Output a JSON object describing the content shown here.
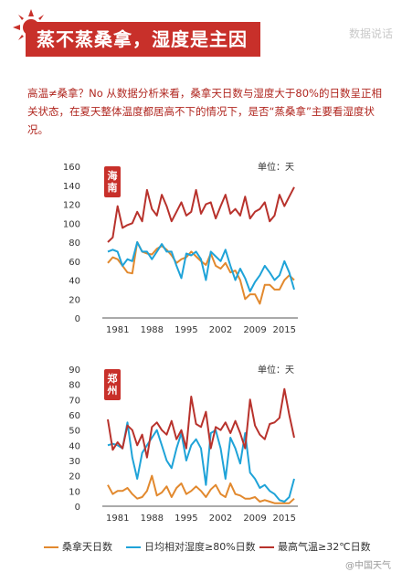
{
  "header": {
    "title": "蒸不蒸桑拿，湿度是主因",
    "brand": "数据说话"
  },
  "intro": "高温≠桑拿？No 从数据分析来看，桑拿天日数与湿度大于80%的日数呈正相关状态，在夏天整体温度都居高不下的情况下，是否“蒸桑拿”主要看湿度状况。",
  "footer": "@中国天气",
  "colors": {
    "sauna": "#e2892e",
    "humidity": "#1fa3d8",
    "hot": "#b8322c",
    "title_bg": "#c8302a"
  },
  "legend": [
    {
      "label": "桑拿天日数",
      "color": "#e2892e"
    },
    {
      "label": "日均相对湿度≥80%日数",
      "color": "#1fa3d8"
    },
    {
      "label": "最高气温≥32℃日数",
      "color": "#b8322c"
    }
  ],
  "chart_data": [
    {
      "type": "line",
      "title": "",
      "region": "海南",
      "unit": "单位：天",
      "x": [
        1979,
        1980,
        1981,
        1982,
        1983,
        1984,
        1985,
        1986,
        1987,
        1988,
        1989,
        1990,
        1991,
        1992,
        1993,
        1994,
        1995,
        1996,
        1997,
        1998,
        1999,
        2000,
        2001,
        2002,
        2003,
        2004,
        2005,
        2006,
        2007,
        2008,
        2009,
        2010,
        2011,
        2012,
        2013,
        2014,
        2015,
        2016,
        2017
      ],
      "x_ticks": [
        "1981",
        "1988",
        "1995",
        "2002",
        "2009",
        "2015"
      ],
      "x_tick_values": [
        1981,
        1988,
        1995,
        2002,
        2009,
        2015
      ],
      "ylim": [
        0,
        160
      ],
      "y_ticks": [
        0,
        20,
        40,
        60,
        80,
        100,
        120,
        140,
        160
      ],
      "series": [
        {
          "name": "桑拿天日数",
          "color": "#e2892e",
          "values": [
            58,
            64,
            62,
            55,
            48,
            47,
            80,
            70,
            68,
            67,
            73,
            76,
            72,
            66,
            58,
            62,
            64,
            70,
            65,
            60,
            56,
            68,
            55,
            52,
            58,
            48,
            50,
            40,
            20,
            25,
            25,
            15,
            35,
            35,
            30,
            30,
            40,
            45,
            40
          ]
        },
        {
          "name": "日均相对湿度≥80%日数",
          "color": "#1fa3d8",
          "values": [
            70,
            72,
            70,
            55,
            62,
            60,
            80,
            70,
            70,
            62,
            70,
            78,
            70,
            70,
            55,
            42,
            68,
            66,
            70,
            62,
            40,
            70,
            65,
            60,
            72,
            55,
            40,
            52,
            42,
            28,
            38,
            45,
            55,
            48,
            40,
            45,
            60,
            48,
            30
          ]
        },
        {
          "name": "最高气温≥32℃日数",
          "color": "#b8322c",
          "values": [
            80,
            85,
            118,
            95,
            98,
            100,
            112,
            102,
            135,
            115,
            108,
            130,
            118,
            102,
            112,
            122,
            108,
            112,
            135,
            110,
            120,
            122,
            105,
            118,
            130,
            110,
            115,
            108,
            128,
            105,
            112,
            115,
            122,
            102,
            108,
            130,
            118,
            128,
            138
          ]
        }
      ]
    },
    {
      "type": "line",
      "title": "",
      "region": "郑州",
      "unit": "单位：天",
      "x": [
        1979,
        1980,
        1981,
        1982,
        1983,
        1984,
        1985,
        1986,
        1987,
        1988,
        1989,
        1990,
        1991,
        1992,
        1993,
        1994,
        1995,
        1996,
        1997,
        1998,
        1999,
        2000,
        2001,
        2002,
        2003,
        2004,
        2005,
        2006,
        2007,
        2008,
        2009,
        2010,
        2011,
        2012,
        2013,
        2014,
        2015,
        2016,
        2017
      ],
      "x_ticks": [
        "1981",
        "1988",
        "1995",
        "2002",
        "2009",
        "2015"
      ],
      "x_tick_values": [
        1981,
        1988,
        1995,
        2002,
        2009,
        2015
      ],
      "ylim": [
        0,
        90
      ],
      "y_ticks": [
        0,
        10,
        20,
        30,
        40,
        50,
        60,
        70,
        80,
        90
      ],
      "series": [
        {
          "name": "桑拿天日数",
          "color": "#e2892e",
          "values": [
            14,
            8,
            10,
            10,
            12,
            8,
            5,
            6,
            10,
            20,
            7,
            9,
            13,
            6,
            12,
            15,
            8,
            10,
            13,
            10,
            6,
            11,
            14,
            8,
            6,
            15,
            8,
            7,
            5,
            5,
            6,
            3,
            4,
            3,
            2,
            2,
            2,
            2,
            5
          ]
        },
        {
          "name": "日均相对湿度≥80%日数",
          "color": "#1fa3d8",
          "values": [
            40,
            41,
            40,
            38,
            55,
            32,
            18,
            35,
            40,
            45,
            50,
            40,
            30,
            25,
            38,
            48,
            30,
            40,
            44,
            38,
            14,
            48,
            50,
            38,
            18,
            45,
            38,
            28,
            48,
            22,
            18,
            12,
            14,
            10,
            8,
            4,
            3,
            6,
            18
          ]
        },
        {
          "name": "最高气温≥32℃日数",
          "color": "#b8322c",
          "values": [
            57,
            37,
            42,
            38,
            53,
            50,
            40,
            47,
            32,
            52,
            55,
            50,
            47,
            56,
            44,
            50,
            38,
            72,
            54,
            52,
            62,
            38,
            52,
            50,
            55,
            48,
            56,
            48,
            38,
            70,
            53,
            47,
            44,
            54,
            55,
            58,
            77,
            60,
            45
          ]
        }
      ]
    }
  ]
}
